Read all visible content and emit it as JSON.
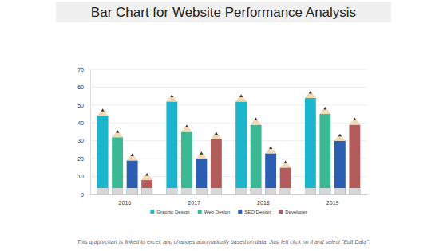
{
  "chart_data": {
    "type": "bar",
    "title": "Bar Chart for Website Performance Analysis",
    "categories": [
      "2016",
      "2017",
      "2018",
      "2019"
    ],
    "series": [
      {
        "name": "Graphic Design",
        "color": "#1bb6cc",
        "values": [
          48,
          56,
          56,
          58
        ]
      },
      {
        "name": "Web Design",
        "color": "#3bb894",
        "values": [
          36,
          39,
          43,
          49
        ]
      },
      {
        "name": "SEO Design",
        "color": "#2b5eb2",
        "values": [
          23,
          24,
          27,
          34
        ]
      },
      {
        "name": "Developer",
        "color": "#b25c5c",
        "values": [
          12,
          35,
          19,
          43
        ]
      }
    ],
    "ylim": [
      0,
      70
    ],
    "yticks": [
      0,
      10,
      20,
      30,
      40,
      50,
      60,
      70
    ],
    "grid": true,
    "footnote": "This graph/chart is linked to excel, and changes automatically based on data. Just left click on it and select \"Edit Data\"."
  }
}
